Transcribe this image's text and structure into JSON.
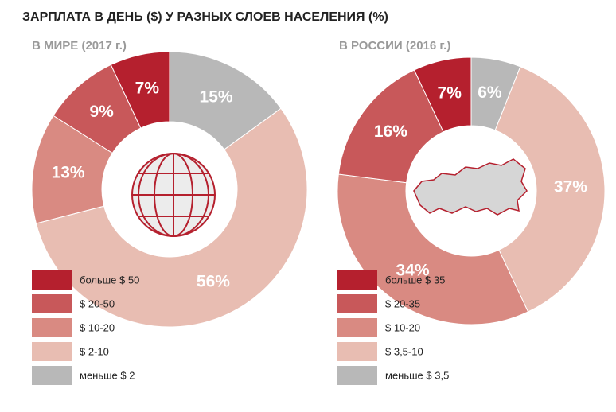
{
  "title": "ЗАРПЛАТА В ДЕНЬ ($) У РАЗНЫХ СЛОЕВ НАСЕЛЕНИЯ (%)",
  "chart_data": [
    {
      "type": "donut",
      "title": "В МИРЕ (2017 г.)",
      "categories": [
        "больше $ 50",
        "$ 20-50",
        "$ 10-20",
        "$ 2-10",
        "меньше $ 2"
      ],
      "values": [
        7,
        9,
        13,
        56,
        15
      ],
      "value_labels": [
        "7%",
        "9%",
        "13%",
        "56%",
        "15%"
      ],
      "colors": [
        "#b5202e",
        "#c8585a",
        "#d98a82",
        "#e8bdb2",
        "#b8b8b8"
      ]
    },
    {
      "type": "donut",
      "title": "В РОССИИ (2016 г.)",
      "categories": [
        "больше $ 35",
        "$ 20-35",
        "$ 10-20",
        "$ 3,5-10",
        "меньше $ 3,5"
      ],
      "values": [
        7,
        16,
        34,
        37,
        6
      ],
      "value_labels": [
        "7%",
        "16%",
        "34%",
        "37%",
        "6%"
      ],
      "colors": [
        "#b5202e",
        "#c8585a",
        "#d98a82",
        "#e8bdb2",
        "#b8b8b8"
      ]
    }
  ]
}
